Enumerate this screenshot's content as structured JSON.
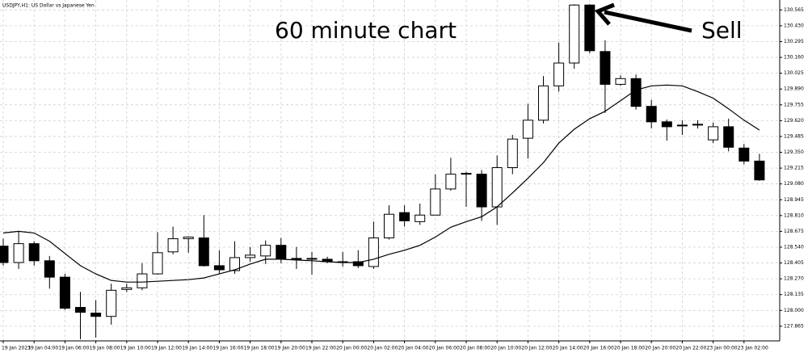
{
  "chart_data": {
    "type": "candlestick",
    "title": "USDJPY,H1: US Dollar vs Japanese Yen",
    "categories": [
      "19 Jan 2023",
      null,
      "19 Jan 04:00",
      null,
      "19 Jan 06:00",
      null,
      "19 Jan 08:00",
      null,
      "19 Jan 10:00",
      null,
      "19 Jan 12:00",
      null,
      "19 Jan 14:00",
      null,
      "19 Jan 16:00",
      null,
      "19 Jan 18:00",
      null,
      "19 Jan 20:00",
      null,
      "19 Jan 22:00",
      null,
      "20 Jan 00:00",
      null,
      "20 Jan 02:00",
      null,
      "20 Jan 04:00",
      null,
      "20 Jan 06:00",
      null,
      "20 Jan 08:00",
      null,
      "20 Jan 10:00",
      null,
      "20 Jan 12:00",
      null,
      "20 Jan 14:00",
      null,
      "20 Jan 16:00",
      null,
      "20 Jan 18:00",
      null,
      "20 Jan 20:00",
      null,
      "20 Jan 22:00",
      null,
      "23 Jan 00:00",
      null,
      "23 Jan 02:00",
      null
    ],
    "open": [
      128.549,
      128.409,
      128.57,
      128.424,
      128.284,
      128.026,
      127.977,
      127.949,
      128.179,
      128.193,
      128.312,
      128.5,
      128.612,
      128.619,
      128.382,
      128.34,
      128.451,
      128.465,
      128.556,
      128.444,
      128.437,
      128.437,
      128.416,
      128.416,
      128.375,
      128.619,
      128.835,
      128.758,
      128.814,
      129.037,
      129.163,
      129.163,
      128.884,
      129.219,
      129.47,
      129.624,
      129.917,
      130.112,
      130.607,
      130.21,
      129.93,
      129.979,
      129.742,
      129.61,
      129.582,
      129.582,
      129.456,
      129.568,
      129.386,
      129.275
    ],
    "high": [
      128.612,
      128.675,
      128.591,
      128.465,
      128.312,
      128.158,
      128.088,
      128.228,
      128.228,
      128.403,
      128.668,
      128.716,
      128.633,
      128.814,
      128.514,
      128.591,
      128.542,
      128.598,
      128.619,
      128.542,
      128.5,
      128.458,
      128.5,
      128.514,
      128.758,
      128.898,
      128.898,
      128.912,
      129.163,
      129.303,
      129.184,
      129.198,
      129.323,
      129.498,
      129.763,
      130.0,
      130.286,
      130.614,
      130.614,
      130.307,
      130.007,
      130.014,
      129.798,
      129.63,
      129.624,
      129.624,
      129.603,
      129.637,
      129.421,
      129.337
    ],
    "low": [
      128.382,
      128.354,
      128.382,
      128.186,
      128.005,
      127.754,
      127.768,
      127.879,
      128.158,
      128.172,
      128.305,
      128.479,
      128.493,
      128.375,
      128.312,
      128.312,
      128.416,
      128.396,
      128.403,
      128.354,
      128.305,
      128.403,
      128.375,
      128.361,
      128.354,
      128.605,
      128.716,
      128.73,
      128.814,
      129.023,
      128.884,
      128.765,
      128.73,
      129.163,
      129.296,
      129.596,
      129.868,
      130.063,
      130.196,
      129.686,
      129.917,
      129.714,
      129.554,
      129.449,
      129.498,
      129.554,
      129.428,
      129.358,
      129.247,
      129.107
    ],
    "close": [
      128.409,
      128.57,
      128.424,
      128.284,
      128.019,
      127.984,
      127.949,
      128.172,
      128.193,
      128.312,
      128.493,
      128.612,
      128.626,
      128.382,
      128.347,
      128.451,
      128.472,
      128.556,
      128.437,
      128.437,
      128.444,
      128.416,
      128.409,
      128.382,
      128.619,
      128.821,
      128.765,
      128.814,
      129.037,
      129.163,
      129.17,
      128.884,
      129.219,
      129.463,
      129.624,
      129.917,
      130.112,
      130.607,
      130.217,
      129.93,
      129.979,
      129.742,
      129.61,
      129.568,
      129.575,
      129.589,
      129.568,
      129.393,
      129.275,
      129.114
    ],
    "up_color": "#ffffff",
    "down_color": "#000000",
    "line": {
      "color": "#000000",
      "values": [
        128.661,
        128.675,
        128.661,
        128.591,
        128.486,
        128.382,
        128.312,
        128.256,
        128.242,
        128.242,
        128.249,
        128.256,
        128.263,
        128.277,
        128.312,
        128.347,
        128.396,
        128.437,
        128.437,
        128.43,
        128.424,
        128.416,
        128.409,
        128.409,
        128.437,
        128.479,
        128.514,
        128.556,
        128.626,
        128.71,
        128.758,
        128.8,
        128.884,
        129.003,
        129.128,
        129.261,
        129.428,
        129.547,
        129.637,
        129.7,
        129.791,
        129.882,
        129.917,
        129.924,
        129.917,
        129.868,
        129.812,
        129.721,
        129.624,
        129.54
      ]
    },
    "ylim": [
      127.74,
      130.65
    ],
    "yticks": [
      130.565,
      {
        "value": 130.43,
        "label": "130.430"
      },
      130.295,
      {
        "value": 130.16,
        "label": "130.160"
      },
      130.025,
      {
        "value": 129.89,
        "label": "129.890"
      },
      129.755,
      {
        "value": 129.62,
        "label": "129.620"
      },
      129.485,
      {
        "value": 129.35,
        "label": "129.350"
      },
      129.215,
      {
        "value": 129.08,
        "label": "129.080"
      },
      128.945,
      {
        "value": 128.81,
        "label": "128.810"
      },
      128.675,
      {
        "value": 128.54,
        "label": "128.540"
      },
      128.405,
      {
        "value": 128.27,
        "label": "128.270"
      },
      128.135,
      {
        "value": 128,
        "label": "128.000"
      },
      127.865
    ],
    "grid": true,
    "annotations": [
      {
        "text": "60 minute chart"
      },
      {
        "text": "Sell"
      }
    ]
  }
}
